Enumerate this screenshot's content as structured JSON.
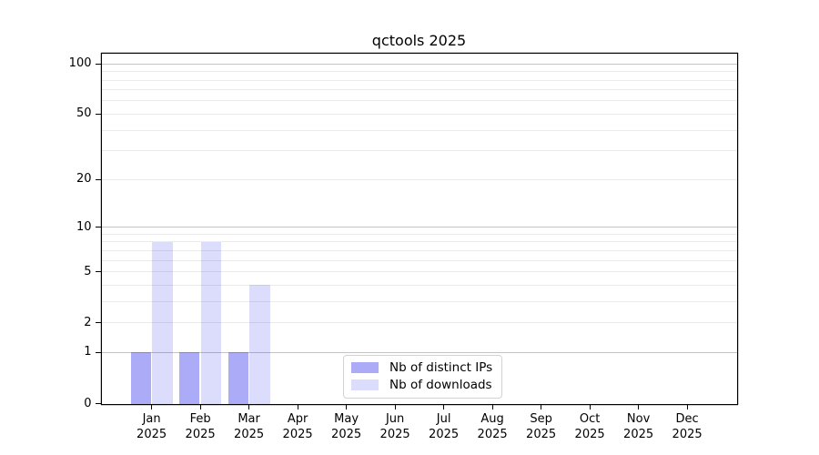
{
  "title": "qctools 2025",
  "legend": {
    "items": [
      {
        "label": "Nb of distinct IPs",
        "color": "rgba(10,10,235,0.34)"
      },
      {
        "label": "Nb of downloads",
        "color": "rgba(10,10,235,0.14)"
      }
    ]
  },
  "colors": {
    "grid_major": "#c4c4c4",
    "grid_minor": "#ebebeb",
    "axis": "#000000",
    "background": "#ffffff"
  },
  "chart_data": {
    "type": "bar",
    "title": "qctools 2025",
    "categories": [
      "Jan",
      "Feb",
      "Mar",
      "Apr",
      "May",
      "Jun",
      "Jul",
      "Aug",
      "Sep",
      "Oct",
      "Nov",
      "Dec"
    ],
    "x_year": "2025",
    "series": [
      {
        "name": "Nb of distinct IPs",
        "color": "rgba(10,10,235,0.34)",
        "values": [
          1,
          1,
          1,
          0,
          0,
          0,
          0,
          0,
          0,
          0,
          0,
          0
        ]
      },
      {
        "name": "Nb of downloads",
        "color": "rgba(10,10,235,0.14)",
        "values": [
          8,
          8,
          4,
          0,
          0,
          0,
          0,
          0,
          0,
          0,
          0,
          0
        ]
      }
    ],
    "xlabel": "",
    "ylabel": "",
    "y_scale": "log10(1+y)",
    "ylim": [
      0,
      115
    ],
    "y_ticks": [
      0,
      1,
      2,
      5,
      10,
      20,
      50,
      100
    ],
    "y_grid_major": [
      1,
      10,
      100
    ],
    "y_grid_minor": [
      2,
      3,
      4,
      5,
      6,
      7,
      8,
      9,
      20,
      30,
      40,
      50,
      60,
      70,
      80,
      90
    ],
    "grid": "horizontal",
    "legend_position": "lower center"
  }
}
